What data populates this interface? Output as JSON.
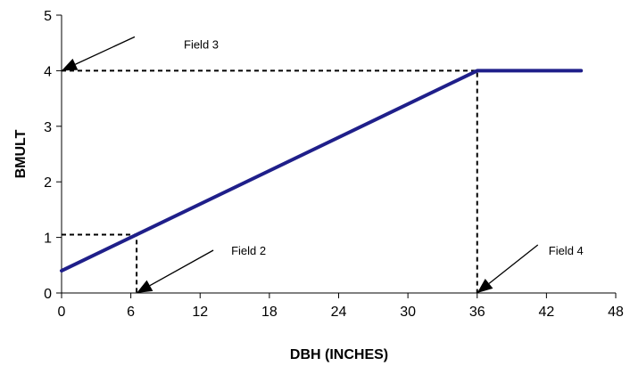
{
  "chart_data": {
    "type": "line",
    "xlabel": "DBH (INCHES)",
    "ylabel": "BMULT",
    "xlim": [
      0,
      48
    ],
    "ylim": [
      0,
      5
    ],
    "xticks": [
      0,
      6,
      12,
      18,
      24,
      30,
      36,
      42,
      48
    ],
    "yticks": [
      0,
      1,
      2,
      3,
      4,
      5
    ],
    "grid": false,
    "legend": "none",
    "series": [
      {
        "x": [
          0,
          36,
          45
        ],
        "y": [
          0.4,
          4,
          4
        ],
        "color": "#1f1f8a"
      }
    ],
    "reference_lines": [
      {
        "points": [
          [
            0,
            4
          ],
          [
            36,
            4
          ],
          [
            36,
            0
          ]
        ]
      },
      {
        "points": [
          [
            0,
            1.05
          ],
          [
            6.5,
            1.05
          ],
          [
            6.5,
            0
          ]
        ]
      }
    ],
    "annotations": [
      {
        "text": "Field 2",
        "points_to": [
          6.5,
          0
        ]
      },
      {
        "text": "Field 3",
        "points_to": [
          0,
          4
        ]
      },
      {
        "text": "Field 4",
        "points_to": [
          36,
          0
        ]
      }
    ]
  }
}
